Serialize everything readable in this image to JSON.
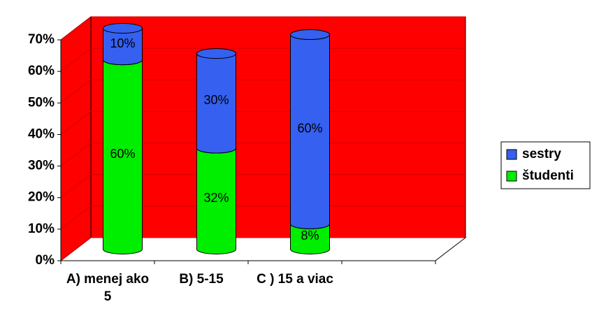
{
  "chart_data": {
    "type": "bar3d-stacked",
    "categories": [
      "A) menej ako 5",
      "B)  5-15",
      "C ) 15 a viac",
      null
    ],
    "series": [
      {
        "name": "študenti",
        "color": "#00ee00",
        "values": [
          60,
          32,
          8,
          null
        ],
        "value_labels": [
          "60%",
          "32%",
          "8%",
          null
        ]
      },
      {
        "name": "sestry",
        "color": "#3560f0",
        "values": [
          10,
          30,
          60,
          null
        ],
        "value_labels": [
          "10%",
          "30%",
          "60%",
          null
        ]
      }
    ],
    "ylim": [
      0,
      70
    ],
    "yticks": [
      {
        "value": 0,
        "label": "0%"
      },
      {
        "value": 10,
        "label": "10%"
      },
      {
        "value": 20,
        "label": "20%"
      },
      {
        "value": 30,
        "label": "30%"
      },
      {
        "value": 40,
        "label": "40%"
      },
      {
        "value": 50,
        "label": "50%"
      },
      {
        "value": 60,
        "label": "60%"
      },
      {
        "value": 70,
        "label": "70%"
      }
    ],
    "wall_color": "#ff0000",
    "grid": true,
    "legend": "right"
  }
}
